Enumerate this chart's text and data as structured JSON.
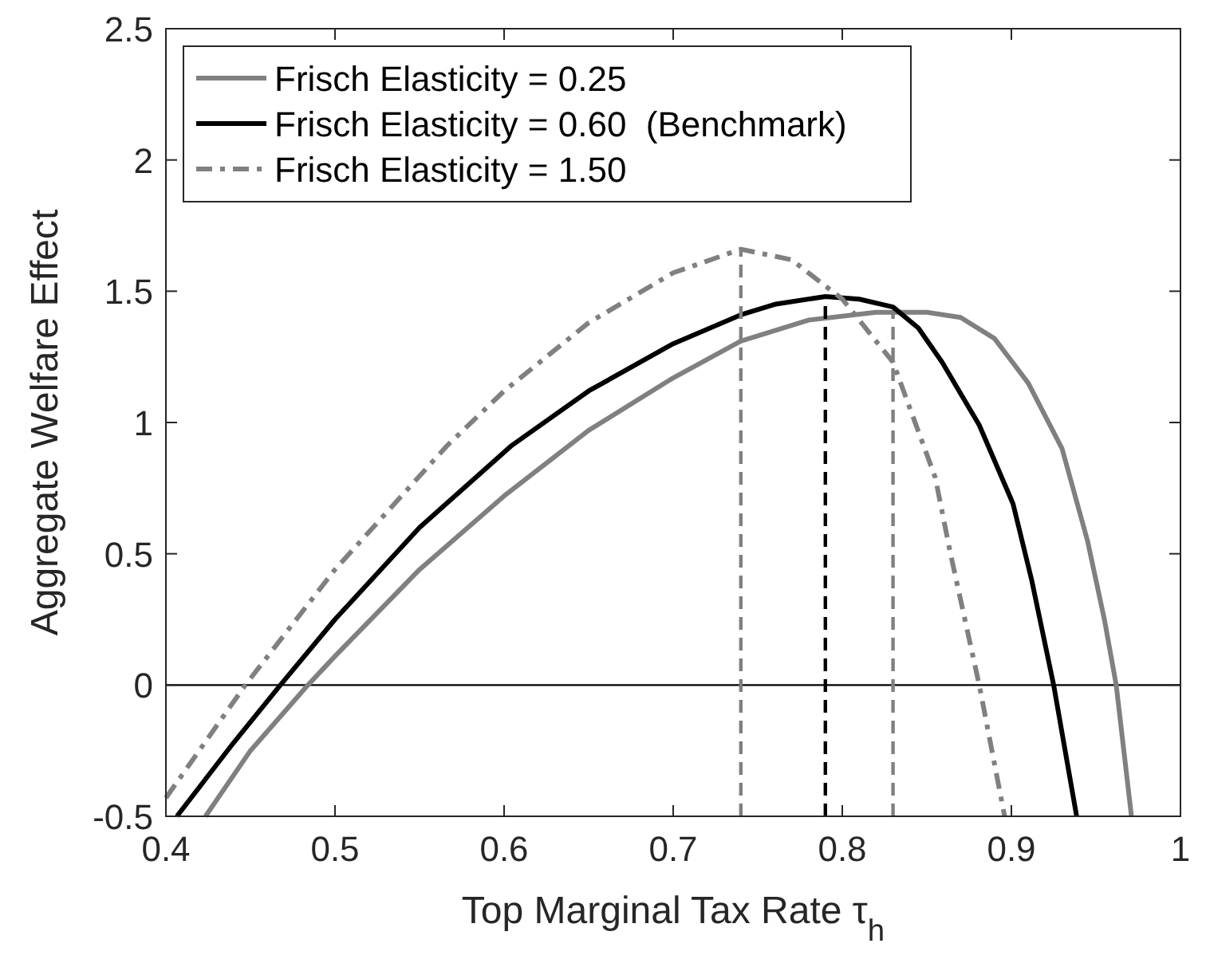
{
  "chart_data": {
    "type": "line",
    "xlabel": "Top Marginal Tax Rate τ$_{h}$",
    "ylabel": "Aggregate Welfare Effect",
    "xlim": [
      0.4,
      1
    ],
    "ylim": [
      -0.5,
      2.5
    ],
    "xticks": [
      0.4,
      0.5,
      0.6,
      0.7,
      0.8,
      0.9,
      1
    ],
    "yticks": [
      -0.5,
      0,
      0.5,
      1,
      1.5,
      2,
      2.5
    ],
    "grid": false,
    "legend": "top left",
    "ref_lines": [
      {
        "axis": "y",
        "value": 0,
        "color": "#000000",
        "line_style": "solid"
      }
    ],
    "series": [
      {
        "name": "Frisch Elasticity = 0.25",
        "color": "#808080",
        "line_style": "solid",
        "x": [
          0.4234,
          0.45,
          0.484,
          0.5,
          0.55,
          0.6,
          0.65,
          0.7,
          0.74,
          0.78,
          0.82,
          0.85,
          0.87,
          0.89,
          0.91,
          0.93,
          0.945,
          0.955,
          0.962,
          0.971
        ],
        "values": [
          -0.5,
          -0.25,
          0,
          0.11,
          0.44,
          0.72,
          0.97,
          1.17,
          1.31,
          1.39,
          1.42,
          1.42,
          1.4,
          1.32,
          1.15,
          0.9,
          0.55,
          0.25,
          0,
          -0.5
        ]
      },
      {
        "name": "Frisch Elasticity = 0.60  (Benchmark)",
        "color": "#000000",
        "line_style": "solid",
        "x": [
          0.4065,
          0.44,
          0.4677,
          0.5,
          0.55,
          0.604,
          0.65,
          0.7,
          0.74,
          0.76,
          0.79,
          0.81,
          0.83,
          0.845,
          0.859,
          0.881,
          0.901,
          0.912,
          0.925,
          0.9386
        ],
        "values": [
          -0.5,
          -0.22,
          0,
          0.25,
          0.6,
          0.91,
          1.12,
          1.3,
          1.41,
          1.45,
          1.48,
          1.47,
          1.44,
          1.36,
          1.23,
          0.99,
          0.69,
          0.4,
          0,
          -0.5
        ]
      },
      {
        "name": "Frisch Elasticity = 1.50",
        "color": "#808080",
        "line_style": "dashdot",
        "x": [
          0.4,
          0.447,
          0.5,
          0.566,
          0.6,
          0.65,
          0.7,
          0.74,
          0.77,
          0.8,
          0.83,
          0.855,
          0.864,
          0.881,
          0.896
        ],
        "values": [
          -0.43,
          0,
          0.44,
          0.91,
          1.12,
          1.38,
          1.57,
          1.66,
          1.62,
          1.47,
          1.23,
          0.79,
          0.5,
          0,
          -0.5
        ]
      },
      {
        "color": "#808080",
        "line_style": "dashed",
        "x": [
          0.74,
          0.74
        ],
        "values": [
          -0.5,
          1.66
        ]
      },
      {
        "color": "#000000",
        "line_style": "dashed",
        "x": [
          0.79,
          0.79
        ],
        "values": [
          -0.5,
          1.48
        ]
      },
      {
        "color": "#808080",
        "line_style": "dashed",
        "x": [
          0.83,
          0.83
        ],
        "values": [
          -0.5,
          1.42
        ]
      }
    ]
  }
}
